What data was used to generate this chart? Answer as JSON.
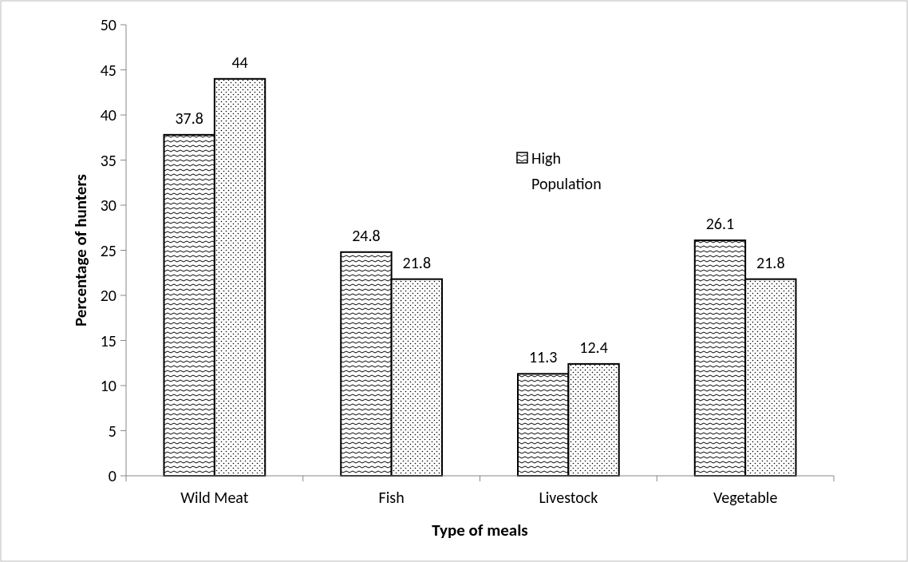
{
  "chart_data": {
    "type": "bar",
    "xlabel": "Type of meals",
    "ylabel": "Percentage of hunters",
    "categories": [
      "Wild Meat",
      "Fish",
      "Livestock",
      "Vegetable"
    ],
    "series": [
      {
        "name": "High Population",
        "color": "#000000",
        "values": [
          37.8,
          24.8,
          11.3,
          26.1
        ]
      },
      {
        "color": "#000000",
        "values": [
          44,
          21.8,
          12.4,
          21.8
        ]
      }
    ],
    "ylim": [
      0,
      50
    ],
    "yticks": [
      0,
      5,
      10,
      15,
      20,
      25,
      30,
      35,
      40,
      45,
      50
    ],
    "data_labels": true,
    "legend": "top",
    "grid": false
  }
}
